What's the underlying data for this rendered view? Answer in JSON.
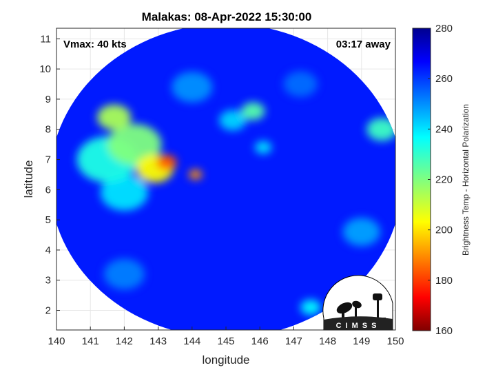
{
  "chart_data": {
    "type": "heatmap",
    "title": "Malakas: 08-Apr-2022 15:30:00",
    "xlabel": "longitude",
    "ylabel": "latitude",
    "xlim": [
      140,
      150
    ],
    "ylim": [
      1.35,
      11.35
    ],
    "xticks": [
      "140",
      "141",
      "142",
      "143",
      "144",
      "145",
      "146",
      "147",
      "148",
      "149",
      "150"
    ],
    "yticks": [
      "2",
      "3",
      "4",
      "5",
      "6",
      "7",
      "8",
      "9",
      "10",
      "11"
    ],
    "grid": true,
    "annotations": {
      "left": "Vmax: 40 kts",
      "right": "03:17 away"
    },
    "colorbar": {
      "label": "Brightness Temp - Horizontal Polarization",
      "range": [
        160,
        280
      ],
      "ticks": [
        "160",
        "180",
        "200",
        "220",
        "240",
        "260",
        "280"
      ],
      "colormap": "jet-reversed"
    },
    "swath": {
      "center_lon": 145.0,
      "center_lat": 6.3,
      "radius_deg": 5.2
    },
    "background_tb": 262,
    "features": [
      {
        "lon": 143.25,
        "lat": 6.9,
        "tb": 185,
        "size": 0.3
      },
      {
        "lon": 144.1,
        "lat": 6.5,
        "tb": 192,
        "size": 0.2
      },
      {
        "lon": 142.9,
        "lat": 6.7,
        "tb": 205,
        "size": 0.55
      },
      {
        "lon": 142.3,
        "lat": 7.5,
        "tb": 220,
        "size": 0.8
      },
      {
        "lon": 141.7,
        "lat": 8.4,
        "tb": 215,
        "size": 0.5
      },
      {
        "lon": 141.5,
        "lat": 7.0,
        "tb": 232,
        "size": 0.9
      },
      {
        "lon": 142.0,
        "lat": 5.9,
        "tb": 238,
        "size": 0.7
      },
      {
        "lon": 145.8,
        "lat": 8.6,
        "tb": 225,
        "size": 0.35
      },
      {
        "lon": 145.2,
        "lat": 8.3,
        "tb": 240,
        "size": 0.4
      },
      {
        "lon": 149.6,
        "lat": 8.0,
        "tb": 228,
        "size": 0.45
      },
      {
        "lon": 146.1,
        "lat": 7.4,
        "tb": 238,
        "size": 0.25
      },
      {
        "lon": 149.0,
        "lat": 4.6,
        "tb": 246,
        "size": 0.55
      },
      {
        "lon": 147.5,
        "lat": 2.1,
        "tb": 235,
        "size": 0.3
      },
      {
        "lon": 144.0,
        "lat": 9.4,
        "tb": 248,
        "size": 0.6
      },
      {
        "lon": 142.0,
        "lat": 3.2,
        "tb": 250,
        "size": 0.6
      },
      {
        "lon": 147.2,
        "lat": 9.5,
        "tb": 252,
        "size": 0.5
      }
    ]
  },
  "logo": {
    "text": "CIMSS"
  }
}
